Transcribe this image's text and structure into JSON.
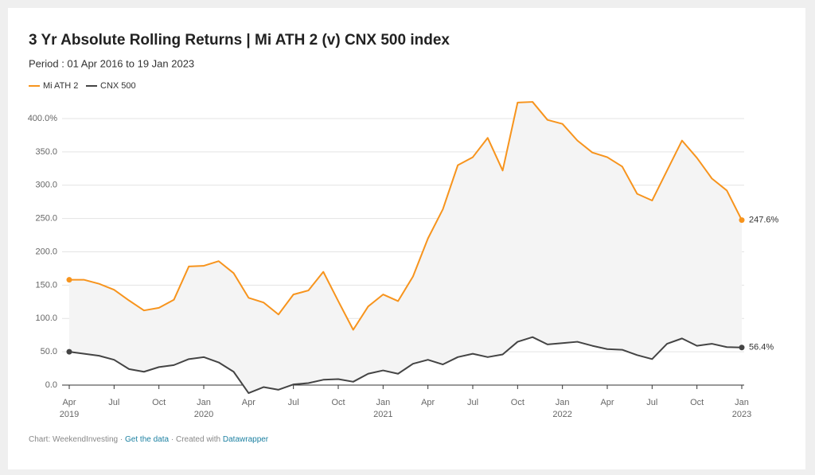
{
  "chart_data": {
    "type": "line",
    "title": "3 Yr Absolute Rolling Returns | Mi ATH 2 (v) CNX 500 index",
    "subtitle": "Period : 01 Apr 2016 to 19 Jan 2023",
    "x": [
      "2019-04",
      "2019-05",
      "2019-06",
      "2019-07",
      "2019-08",
      "2019-09",
      "2019-10",
      "2019-11",
      "2019-12",
      "2020-01",
      "2020-02",
      "2020-03",
      "2020-04",
      "2020-05",
      "2020-06",
      "2020-07",
      "2020-08",
      "2020-09",
      "2020-10",
      "2020-11",
      "2020-12",
      "2021-01",
      "2021-02",
      "2021-03",
      "2021-04",
      "2021-05",
      "2021-06",
      "2021-07",
      "2021-08",
      "2021-09",
      "2021-10",
      "2021-11",
      "2021-12",
      "2022-01",
      "2022-02",
      "2022-03",
      "2022-04",
      "2022-05",
      "2022-06",
      "2022-07",
      "2022-08",
      "2022-09",
      "2022-10",
      "2022-11",
      "2022-12",
      "2023-01"
    ],
    "series": [
      {
        "name": "Mi ATH 2",
        "color": "#f7941d",
        "values": [
          158,
          158,
          152,
          143,
          127,
          112,
          116,
          128,
          178,
          179,
          186,
          168,
          131,
          124,
          106,
          136,
          142,
          170,
          126,
          83,
          118,
          136,
          126,
          163,
          220,
          264,
          330,
          342,
          371,
          322,
          424,
          425,
          398,
          392,
          367,
          349,
          342,
          328,
          287,
          277,
          322,
          367,
          341,
          310,
          292,
          247.6
        ],
        "value_labels": {
          "45": "247.6%"
        }
      },
      {
        "name": "CNX 500",
        "color": "#444444",
        "values": [
          50,
          47,
          44,
          38,
          24,
          20,
          27,
          30,
          39,
          42,
          34,
          20,
          -12,
          -3,
          -7,
          1,
          3,
          8,
          9,
          5,
          17,
          22,
          17,
          32,
          38,
          31,
          42,
          47,
          42,
          46,
          65,
          72,
          61,
          63,
          65,
          59,
          54,
          53,
          45,
          39,
          62,
          70,
          59,
          62,
          57,
          56.4
        ],
        "value_labels": {
          "45": "56.4%"
        }
      }
    ],
    "xlim": [
      "2019-04",
      "2023-01"
    ],
    "xticks": [
      {
        "value": "2019-04",
        "label": "Apr",
        "year": "2019"
      },
      {
        "value": "2019-07",
        "label": "Jul"
      },
      {
        "value": "2019-10",
        "label": "Oct"
      },
      {
        "value": "2020-01",
        "label": "Jan",
        "year": "2020"
      },
      {
        "value": "2020-04",
        "label": "Apr"
      },
      {
        "value": "2020-07",
        "label": "Jul"
      },
      {
        "value": "2020-10",
        "label": "Oct"
      },
      {
        "value": "2021-01",
        "label": "Jan",
        "year": "2021"
      },
      {
        "value": "2021-04",
        "label": "Apr"
      },
      {
        "value": "2021-07",
        "label": "Jul"
      },
      {
        "value": "2021-10",
        "label": "Oct"
      },
      {
        "value": "2022-01",
        "label": "Jan",
        "year": "2022"
      },
      {
        "value": "2022-04",
        "label": "Apr"
      },
      {
        "value": "2022-07",
        "label": "Jul"
      },
      {
        "value": "2022-10",
        "label": "Oct"
      },
      {
        "value": "2023-01",
        "label": "Jan",
        "year": "2023"
      }
    ],
    "ylim": [
      -15,
      400
    ],
    "yticks": [
      {
        "value": 0,
        "label": "0.0"
      },
      {
        "value": 50,
        "label": "50.0"
      },
      {
        "value": 100,
        "label": "100.0"
      },
      {
        "value": 150,
        "label": "150.0"
      },
      {
        "value": 200,
        "label": "200.0"
      },
      {
        "value": 250,
        "label": "250.0"
      },
      {
        "value": 300,
        "label": "300.0"
      },
      {
        "value": 350,
        "label": "350.0"
      },
      {
        "value": 400,
        "label": "400.0%"
      }
    ],
    "grid": true,
    "legend": "top-left",
    "footer": {
      "source": "Chart: WeekendInvesting",
      "separator": "·",
      "get_data": "Get the data",
      "created_with": "Created with",
      "tool": "Datawrapper"
    }
  }
}
